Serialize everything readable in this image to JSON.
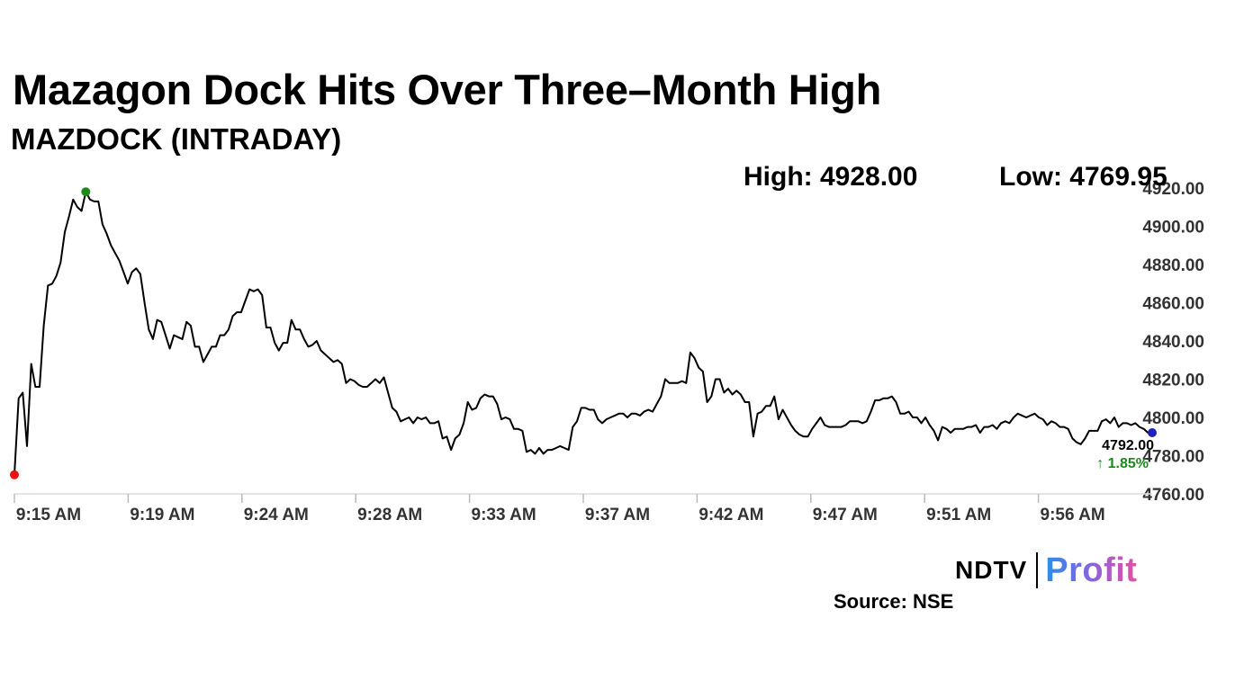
{
  "headline": "Mazagon Dock Hits Over Three–Month High",
  "subheadline": "MAZDOCK (INTRADAY)",
  "stats": {
    "high": "High: 4928.00",
    "low": "Low: 4769.95"
  },
  "source": "Source: NSE",
  "logo": {
    "ndtv": "NDTV",
    "profit": "Profit"
  },
  "chart_data": {
    "type": "line",
    "ylim": [
      4760,
      4920
    ],
    "yticks": [
      4760,
      4780,
      4800,
      4820,
      4840,
      4860,
      4880,
      4900,
      4920
    ],
    "ytick_labels": [
      "4760.00",
      "4780.00",
      "4800.00",
      "4820.00",
      "4840.00",
      "4860.00",
      "4880.00",
      "4900.00",
      "4920.00"
    ],
    "x_range": [
      0,
      45
    ],
    "xticks": [
      {
        "x": 0,
        "label": "9:15 AM"
      },
      {
        "x": 4.5,
        "label": "9:19 AM"
      },
      {
        "x": 9,
        "label": "9:24 AM"
      },
      {
        "x": 13.5,
        "label": "9:28 AM"
      },
      {
        "x": 18,
        "label": "9:33 AM"
      },
      {
        "x": 22.5,
        "label": "9:37 AM"
      },
      {
        "x": 27,
        "label": "9:42 AM"
      },
      {
        "x": 31.5,
        "label": "9:47 AM"
      },
      {
        "x": 36,
        "label": "9:51 AM"
      },
      {
        "x": 40.5,
        "label": "9:56 AM"
      }
    ],
    "y": [
      4770,
      4810,
      4813,
      4785,
      4828,
      4816,
      4816,
      4848,
      4869,
      4870,
      4874,
      4881,
      4897,
      4905,
      4914,
      4910,
      4908,
      4918,
      4914,
      4913,
      4913,
      4901,
      4896,
      4890,
      4886,
      4882,
      4876,
      4870,
      4876,
      4878,
      4875,
      4860,
      4846,
      4841,
      4851,
      4850,
      4843,
      4836,
      4843,
      4842,
      4841,
      4850,
      4848,
      4837,
      4837,
      4829,
      4833,
      4837,
      4837,
      4843,
      4843,
      4846,
      4853,
      4855,
      4855,
      4861,
      4867,
      4866,
      4867,
      4864,
      4847,
      4847,
      4839,
      4835,
      4839,
      4839,
      4851,
      4846,
      4846,
      4841,
      4837,
      4838,
      4840,
      4835,
      4833,
      4831,
      4829,
      4830,
      4828,
      4818,
      4820,
      4819,
      4817,
      4816,
      4816,
      4818,
      4820,
      4818,
      4821,
      4813,
      4805,
      4803,
      4798,
      4799,
      4800,
      4797,
      4800,
      4799,
      4800,
      4797,
      4797,
      4798,
      4789,
      4790,
      4783,
      4789,
      4791,
      4797,
      4808,
      4804,
      4805,
      4810,
      4812,
      4811,
      4811,
      4807,
      4799,
      4800,
      4799,
      4794,
      4794,
      4793,
      4782,
      4783,
      4781,
      4784,
      4781,
      4783,
      4783,
      4784,
      4785,
      4784,
      4783,
      4795,
      4798,
      4805,
      4805,
      4804,
      4804,
      4799,
      4797,
      4799,
      4800,
      4801,
      4802,
      4802,
      4800,
      4802,
      4802,
      4801,
      4803,
      4804,
      4803,
      4807,
      4811,
      4820,
      4818,
      4818,
      4818,
      4819,
      4818,
      4834,
      4831,
      4826,
      4824,
      4808,
      4811,
      4820,
      4820,
      4813,
      4815,
      4812,
      4814,
      4812,
      4808,
      4808,
      4790,
      4802,
      4803,
      4806,
      4806,
      4811,
      4799,
      4804,
      4800,
      4796,
      4793,
      4791,
      4790,
      4790,
      4794,
      4797,
      4800,
      4796,
      4795,
      4795,
      4795,
      4795,
      4796,
      4798,
      4798,
      4798,
      4797,
      4798,
      4803,
      4809,
      4809,
      4810,
      4810,
      4811,
      4808,
      4802,
      4802,
      4803,
      4800,
      4800,
      4797,
      4800,
      4796,
      4793,
      4788,
      4795,
      4794,
      4792,
      4794,
      4794,
      4794,
      4795,
      4795,
      4796,
      4792,
      4795,
      4795,
      4796,
      4794,
      4797,
      4798,
      4797,
      4800,
      4802,
      4801,
      4800,
      4801,
      4802,
      4800,
      4799,
      4796,
      4798,
      4797,
      4795,
      4795,
      4794,
      4789,
      4787,
      4786,
      4789,
      4793,
      4793,
      4793,
      4798,
      4799,
      4797,
      4800,
      4795,
      4797,
      4797,
      4796,
      4797,
      4795,
      4794,
      4792,
      4792
    ],
    "open_marker": 4770,
    "high_marker": 4918,
    "last_label": "4792.00",
    "change_label": "↑ 1.85%",
    "line_color": "#000000",
    "open_color": "#ee1111",
    "high_color": "#1b8a1b",
    "last_color": "#1f1fbf",
    "change_color": "#1b8a1b",
    "grid": false
  }
}
